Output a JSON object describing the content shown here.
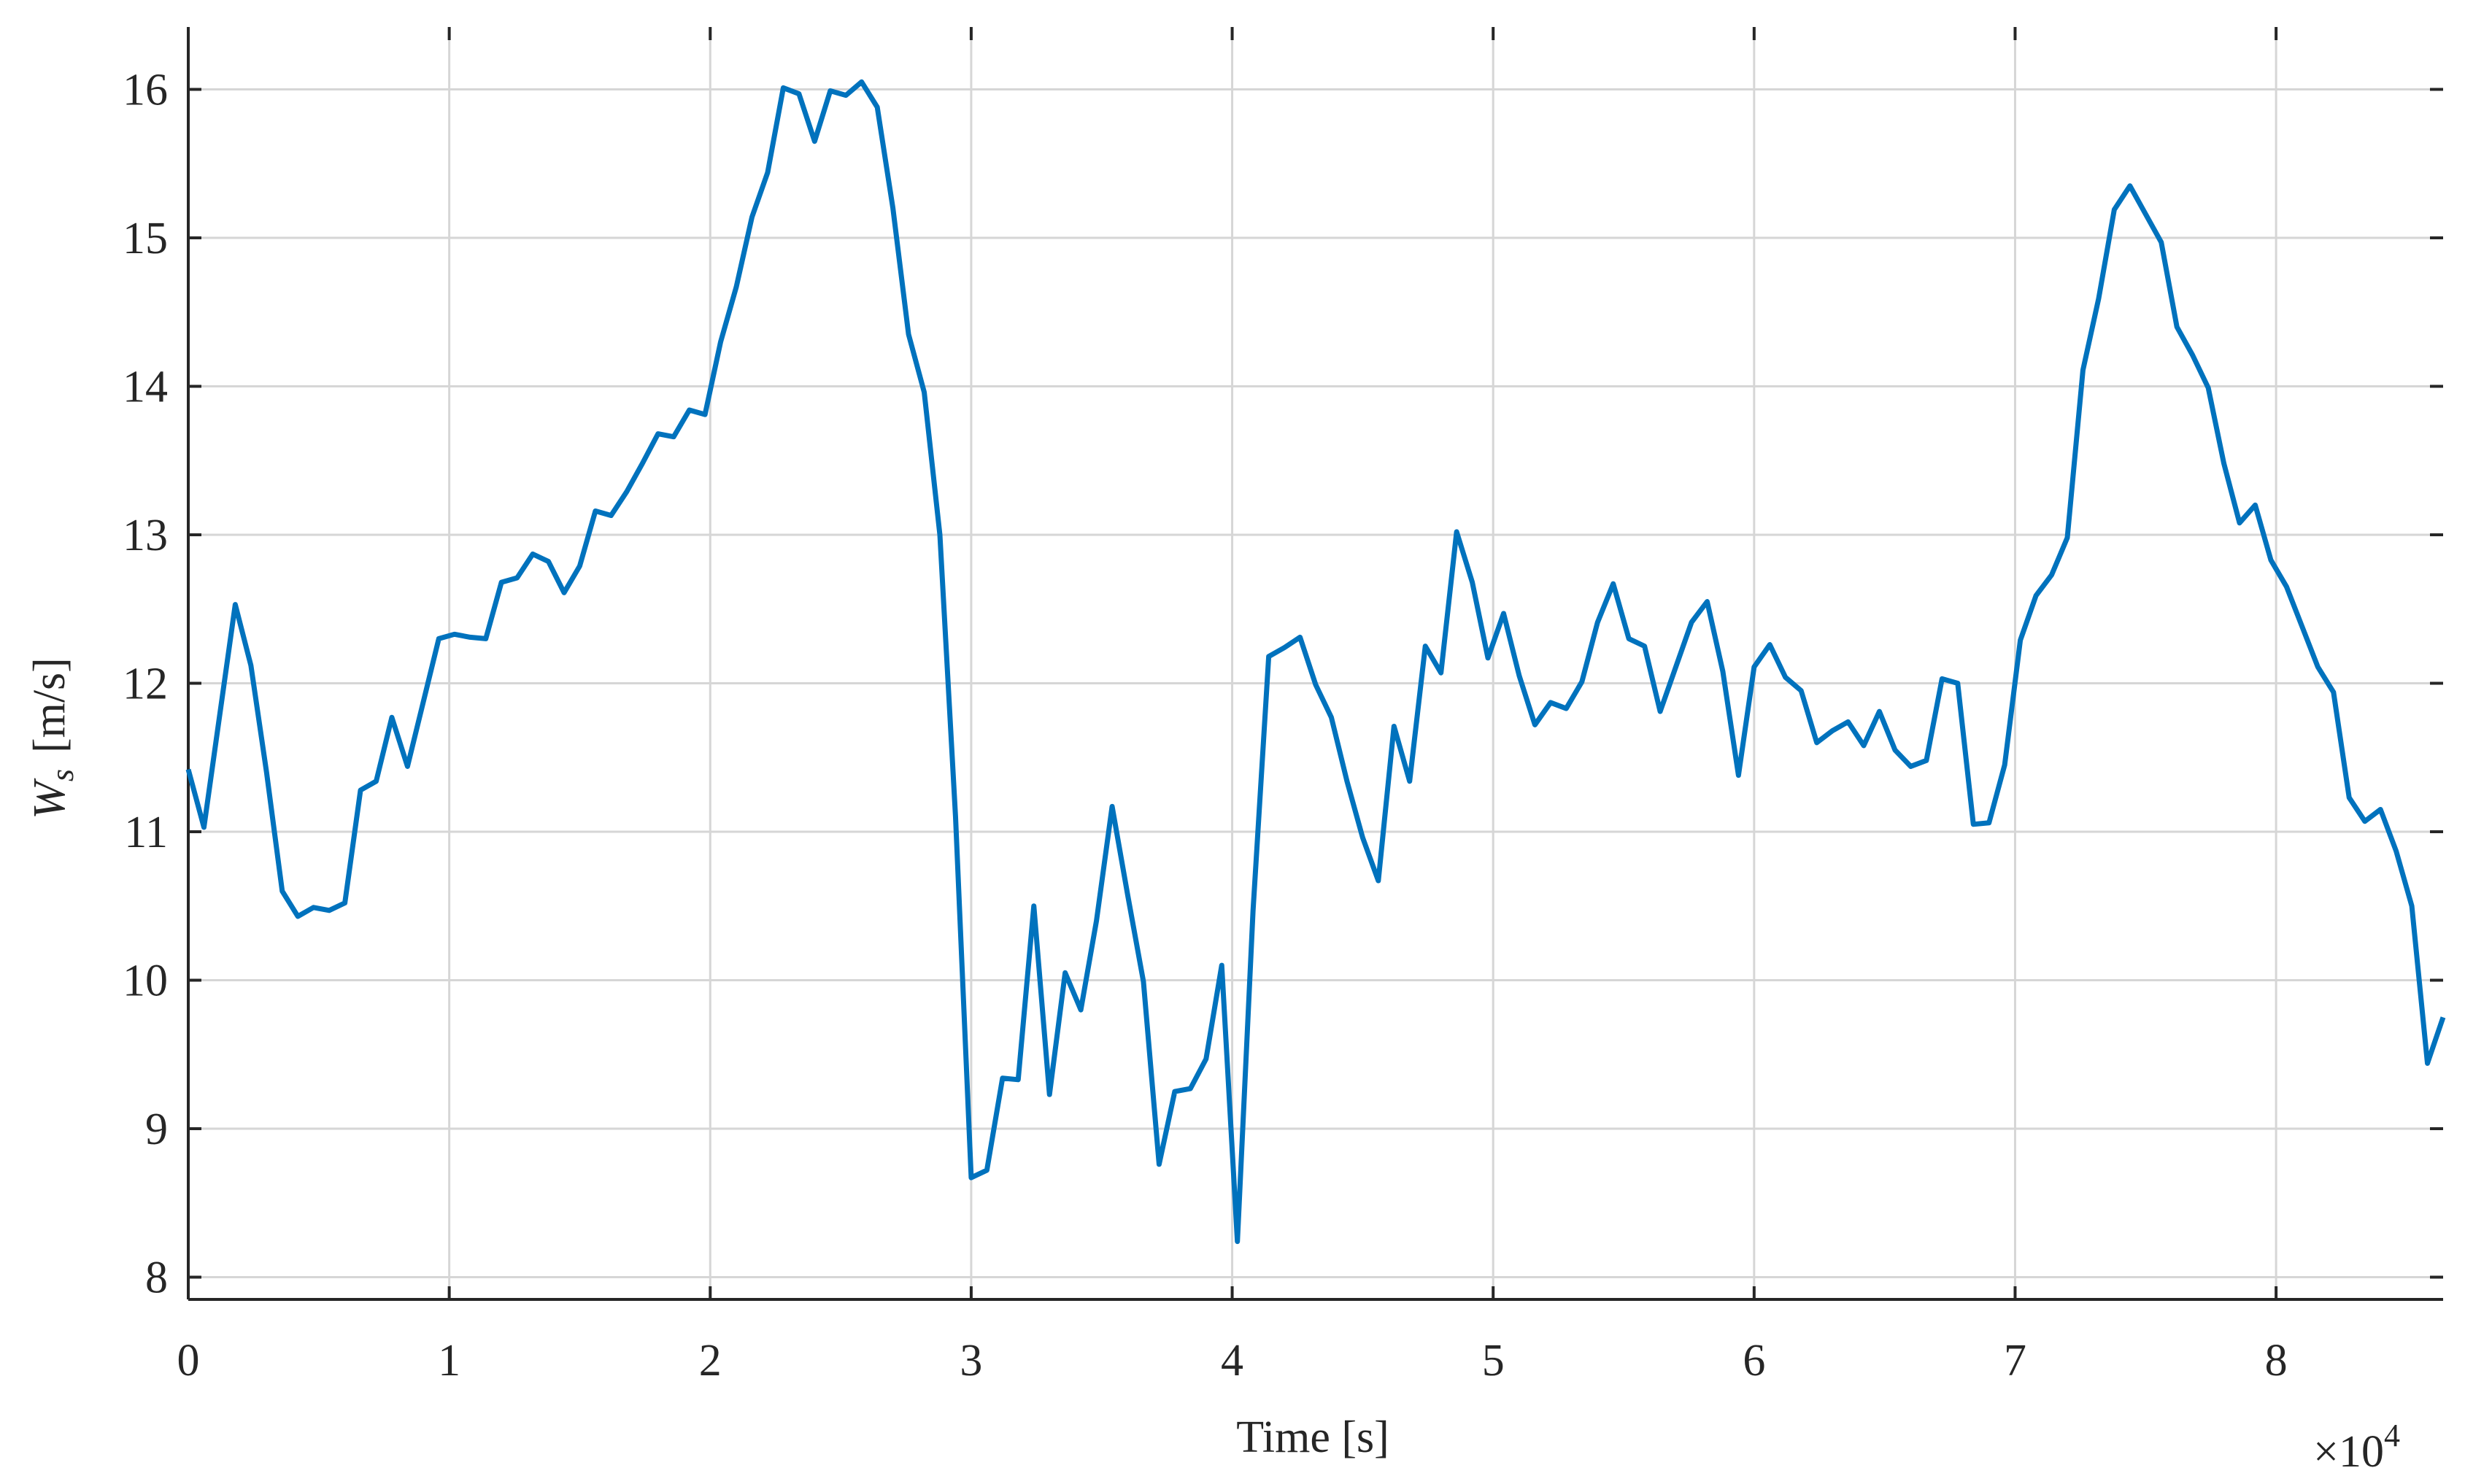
{
  "chart_data": {
    "type": "line",
    "xlabel": "Time [s]",
    "ylabel": {
      "symbol": "W",
      "subscript": "s",
      "unit": "[m/s]"
    },
    "x_multiplier": {
      "base": "×10",
      "exponent": "4"
    },
    "x": [
      0,
      600,
      1200,
      1800,
      2400,
      3000,
      3600,
      4200,
      4800,
      5400,
      6000,
      6600,
      7200,
      7800,
      8400,
      9000,
      9600,
      10200,
      10800,
      11400,
      12000,
      12600,
      13200,
      13800,
      14400,
      15000,
      15600,
      16200,
      16800,
      17400,
      18000,
      18600,
      19200,
      19800,
      20400,
      21000,
      21600,
      22200,
      22800,
      23400,
      24000,
      24600,
      25200,
      25800,
      26400,
      27000,
      27600,
      28200,
      28800,
      29400,
      30000,
      30600,
      31200,
      31800,
      32400,
      33000,
      33600,
      34200,
      34800,
      35400,
      36000,
      36600,
      37200,
      37800,
      38400,
      39000,
      39600,
      40200,
      40800,
      41400,
      42000,
      42600,
      43200,
      43800,
      44400,
      45000,
      45600,
      46200,
      46800,
      47400,
      48000,
      48600,
      49200,
      49800,
      50400,
      51000,
      51600,
      52200,
      52800,
      53400,
      54000,
      54600,
      55200,
      55800,
      56400,
      57000,
      57600,
      58200,
      58800,
      59400,
      60000,
      60600,
      61200,
      61800,
      62400,
      63000,
      63600,
      64200,
      64800,
      65400,
      66000,
      66600,
      67200,
      67800,
      68400,
      69000,
      69600,
      70200,
      70800,
      71400,
      72000,
      72600,
      73200,
      73800,
      74400,
      75000,
      75600,
      76200,
      76800,
      77400,
      78000,
      78600,
      79200,
      79800,
      80400,
      81000,
      81600,
      82200,
      82800,
      83400,
      84000,
      84600,
      85200,
      85800,
      86400
    ],
    "series": [
      {
        "color": "#0072bd",
        "values": [
          11.42,
          11.03,
          11.78,
          12.53,
          12.12,
          11.4,
          10.6,
          10.43,
          10.49,
          10.47,
          10.52,
          11.28,
          11.34,
          11.77,
          11.44,
          11.87,
          12.3,
          12.33,
          12.31,
          12.3,
          12.68,
          12.71,
          12.87,
          12.82,
          12.61,
          12.79,
          13.16,
          13.13,
          13.29,
          13.48,
          13.68,
          13.66,
          13.84,
          13.81,
          14.3,
          14.67,
          15.14,
          15.44,
          16.01,
          15.97,
          15.65,
          15.99,
          15.96,
          16.05,
          15.88,
          15.2,
          14.35,
          13.96,
          13.0,
          11.1,
          8.67,
          8.72,
          9.34,
          9.33,
          10.5,
          9.23,
          10.05,
          9.8,
          10.4,
          11.17,
          10.57,
          9.99,
          8.76,
          9.25,
          9.27,
          9.47,
          10.1,
          8.24,
          10.47,
          12.18,
          12.24,
          12.31,
          11.99,
          11.77,
          11.34,
          10.96,
          10.67,
          11.71,
          11.34,
          12.25,
          12.07,
          13.02,
          12.68,
          12.17,
          12.47,
          12.05,
          11.72,
          11.87,
          11.83,
          12.01,
          12.41,
          12.67,
          12.3,
          12.25,
          11.81,
          12.11,
          12.41,
          12.55,
          12.08,
          11.38,
          12.11,
          12.26,
          12.04,
          11.95,
          11.6,
          11.68,
          11.74,
          11.58,
          11.81,
          11.55,
          11.44,
          11.48,
          12.03,
          12.0,
          11.05,
          11.06,
          11.45,
          12.29,
          12.59,
          12.73,
          12.98,
          14.11,
          14.59,
          15.19,
          15.35,
          15.16,
          14.97,
          14.4,
          14.21,
          13.99,
          13.48,
          13.08,
          13.2,
          12.83,
          12.65,
          12.38,
          12.11,
          11.94,
          11.23,
          11.07,
          11.15,
          10.87,
          10.5,
          9.44,
          9.75
        ]
      }
    ],
    "xlim": [
      0,
      86400
    ],
    "ylim": [
      7.85,
      16.42
    ],
    "xticks": [
      {
        "value": 0,
        "label": "0"
      },
      {
        "value": 10000,
        "label": "1"
      },
      {
        "value": 20000,
        "label": "2"
      },
      {
        "value": 30000,
        "label": "3"
      },
      {
        "value": 40000,
        "label": "4"
      },
      {
        "value": 50000,
        "label": "5"
      },
      {
        "value": 60000,
        "label": "6"
      },
      {
        "value": 70000,
        "label": "7"
      },
      {
        "value": 80000,
        "label": "8"
      }
    ],
    "yticks": [
      8,
      9,
      10,
      11,
      12,
      13,
      14,
      15,
      16
    ],
    "grid": true
  }
}
